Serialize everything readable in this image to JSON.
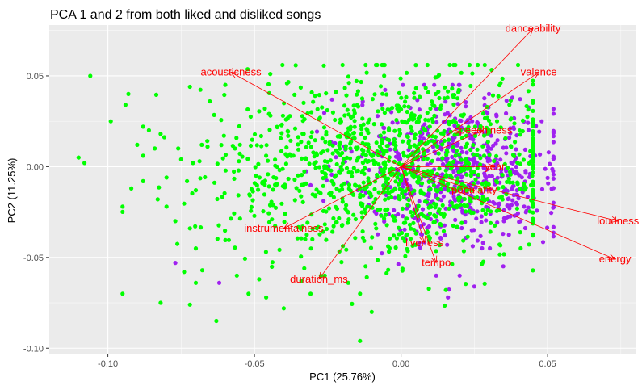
{
  "chart_data": {
    "type": "scatter",
    "title": "PCA 1 and 2 from both liked and disliked songs",
    "xlabel": "PC1 (25.76%)",
    "ylabel": "PC2 (11.25%)",
    "xlim": [
      -0.12,
      0.08
    ],
    "ylim": [
      -0.103,
      0.078
    ],
    "grid": true,
    "x_ticks": [
      -0.1,
      -0.05,
      0.0,
      0.05
    ],
    "x_tick_labels": [
      "-0.10",
      "-0.05",
      "0.00",
      "0.05"
    ],
    "y_ticks": [
      -0.1,
      -0.05,
      0.0,
      0.05
    ],
    "y_tick_labels": [
      "-0.10",
      "-0.05",
      "0.00",
      "0.05"
    ],
    "point_colors": {
      "group_a": "#00FF00",
      "group_b": "#A020F0"
    },
    "series": [
      {
        "points": [
          [
            -0.106,
            0.05
          ],
          [
            -0.11,
            0.005
          ],
          [
            -0.108,
            0.002
          ],
          [
            -0.093,
            0.04
          ],
          [
            -0.094,
            0.034
          ],
          [
            -0.099,
            0.025
          ],
          [
            -0.088,
            0.022
          ],
          [
            -0.086,
            0.02
          ],
          [
            -0.09,
            0.012
          ],
          [
            -0.084,
            0.01
          ],
          [
            -0.088,
            0.006
          ],
          [
            -0.082,
            0.018
          ],
          [
            -0.076,
            0.01
          ],
          [
            -0.075,
            0.004
          ],
          [
            -0.071,
            0.002
          ],
          [
            -0.068,
            0.012
          ],
          [
            -0.066,
            0.011
          ],
          [
            -0.08,
            -0.006
          ],
          [
            -0.073,
            -0.008
          ],
          [
            -0.07,
            -0.013
          ],
          [
            -0.092,
            -0.012
          ],
          [
            -0.088,
            -0.008
          ],
          [
            -0.083,
            -0.018
          ],
          [
            -0.08,
            -0.022
          ],
          [
            -0.077,
            -0.03
          ],
          [
            -0.072,
            -0.034
          ],
          [
            -0.07,
            -0.045
          ],
          [
            -0.074,
            -0.058
          ],
          [
            -0.07,
            -0.064
          ],
          [
            -0.072,
            0.044
          ],
          [
            -0.082,
            -0.075
          ],
          [
            -0.072,
            -0.076
          ],
          [
            -0.063,
            -0.085
          ],
          [
            -0.056,
            -0.06
          ],
          [
            -0.052,
            -0.07
          ],
          [
            -0.046,
            -0.072
          ],
          [
            -0.04,
            -0.078
          ],
          [
            -0.033,
            -0.056
          ],
          [
            -0.026,
            -0.06
          ],
          [
            -0.018,
            -0.064
          ],
          [
            -0.014,
            -0.07
          ],
          [
            -0.01,
            -0.08
          ],
          [
            -0.014,
            -0.096
          ]
        ]
      },
      {
        "points": [
          [
            -0.077,
            -0.053
          ],
          [
            -0.062,
            -0.064
          ],
          [
            0.03,
            0.04
          ],
          [
            0.038,
            0.038
          ],
          [
            0.048,
            0.025
          ],
          [
            0.042,
            -0.022
          ],
          [
            0.036,
            -0.028
          ],
          [
            0.028,
            -0.042
          ],
          [
            0.02,
            -0.06
          ],
          [
            0.025,
            -0.066
          ],
          [
            0.016,
            -0.072
          ],
          [
            0.012,
            -0.06
          ]
        ]
      }
    ],
    "cloud": {
      "center": [
        -0.002,
        0.0
      ],
      "spread": [
        0.03,
        0.025
      ],
      "count_a": 1180,
      "count_b": 620
    },
    "loadings": [
      {
        "label": "danceability",
        "x": 0.045,
        "y": 0.076
      },
      {
        "label": "valence",
        "x": 0.047,
        "y": 0.052
      },
      {
        "label": "acousticness",
        "x": -0.058,
        "y": 0.052
      },
      {
        "label": "speechiness",
        "x": 0.028,
        "y": 0.02
      },
      {
        "label": "year",
        "x": 0.032,
        "y": 0.0
      },
      {
        "label": "popularity",
        "x": 0.025,
        "y": -0.013
      },
      {
        "label": "loudness",
        "x": 0.074,
        "y": -0.03
      },
      {
        "label": "energy",
        "x": 0.073,
        "y": -0.051
      },
      {
        "label": "instrumentalness",
        "x": -0.04,
        "y": -0.034
      },
      {
        "label": "liveness",
        "x": 0.008,
        "y": -0.042
      },
      {
        "label": "tempo",
        "x": 0.012,
        "y": -0.053
      },
      {
        "label": "duration_ms",
        "x": -0.028,
        "y": -0.062
      }
    ],
    "loading_color": "#FF0000"
  }
}
